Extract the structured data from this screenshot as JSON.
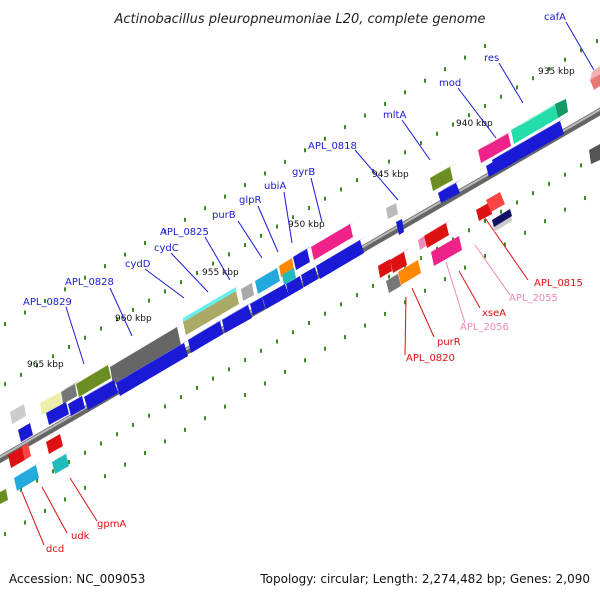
{
  "title": "Actinobacillus pleuropneumoniae L20, complete genome",
  "accession_text": "Accession: NC_009053",
  "topology_text": "Topology: circular; Length: 2,274,482 bp; Genes: 2,090",
  "colors": {
    "backbone": "#888888",
    "tick": "#3a8a2a",
    "label_blue": "#1a1ad6",
    "label_red": "#dd1111",
    "label_pink": "#ee88bb"
  },
  "kbp_labels": [
    "935 kbp",
    "940 kbp",
    "945 kbp",
    "950 kbp",
    "955 kbp",
    "960 kbp",
    "965 kbp"
  ],
  "gene_labels": {
    "cafA": "cafA",
    "res": "res",
    "mod": "mod",
    "mltA": "mltA",
    "APL_0818": "APL_0818",
    "gyrB": "gyrB",
    "ubiA": "ubiA",
    "glpR": "glpR",
    "purB": "purB",
    "APL_0825": "APL_0825",
    "cydC": "cydC",
    "cydD": "cydD",
    "APL_0828": "APL_0828",
    "APL_0829": "APL_0829",
    "APL_0815": "APL_0815",
    "APL_2055": "APL_2055",
    "xseA": "xseA",
    "APL_2056": "APL_2056",
    "purR": "purR",
    "APL_0820": "APL_0820",
    "gpmA": "gpmA",
    "udk": "udk",
    "dcd": "dcd"
  }
}
